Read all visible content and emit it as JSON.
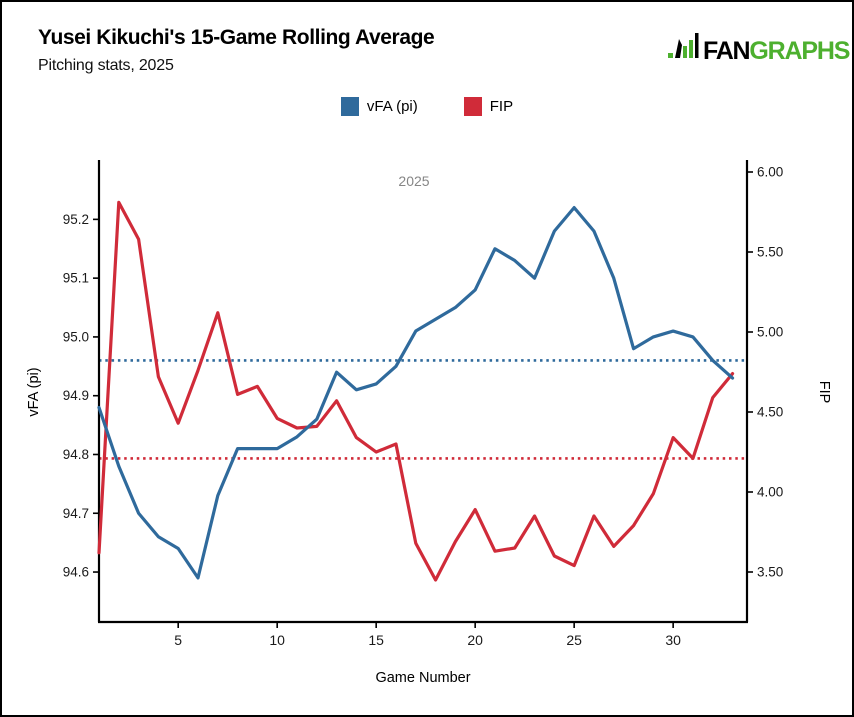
{
  "header": {
    "title": "Yusei Kikuchi's 15-Game Rolling Average",
    "subtitle": "Pitching stats, 2025",
    "logo": {
      "fan": "FAN",
      "graphs": "GRAPHS",
      "green": "#4db02f"
    }
  },
  "legend": [
    {
      "label": "vFA (pi)",
      "color": "#2f6a9c"
    },
    {
      "label": "FIP",
      "color": "#d02b39"
    }
  ],
  "chart_data": {
    "type": "line",
    "title": "Yusei Kikuchi's 15-Game Rolling Average",
    "subtitle": "Pitching stats, 2025",
    "period_label": "2025",
    "xlabel": "Game Number",
    "grid": false,
    "legend_position": "top",
    "x_range": [
      1,
      33.73
    ],
    "xticks": [
      5,
      10,
      15,
      20,
      25,
      30
    ],
    "x": [
      1,
      2,
      3,
      4,
      5,
      6,
      7,
      8,
      9,
      10,
      11,
      12,
      13,
      14,
      15,
      16,
      17,
      18,
      19,
      20,
      21,
      22,
      23,
      24,
      25,
      26,
      27,
      28,
      29,
      30,
      31,
      32,
      33
    ],
    "left_axis": {
      "label": "vFA (pi)",
      "ticks": [
        "94.6",
        "94.7",
        "94.8",
        "94.9",
        "95.0",
        "95.1",
        "95.2"
      ],
      "range": [
        94.515,
        95.301
      ]
    },
    "right_axis": {
      "label": "FIP",
      "ticks": [
        "3.50",
        "4.00",
        "4.50",
        "5.00",
        "5.50",
        "6.00"
      ],
      "range": [
        3.1875,
        6.075
      ]
    },
    "series": [
      {
        "name": "vFA (pi)",
        "axis": "left",
        "color": "#2f6a9c",
        "mean_line": 94.96,
        "values": [
          94.88,
          94.78,
          94.7,
          94.66,
          94.64,
          94.59,
          94.73,
          94.81,
          94.81,
          94.81,
          94.83,
          94.86,
          94.94,
          94.91,
          94.92,
          94.95,
          95.01,
          95.03,
          95.05,
          95.08,
          95.15,
          95.13,
          95.1,
          95.18,
          95.22,
          95.18,
          95.1,
          94.98,
          95.0,
          95.01,
          95.0,
          94.96,
          94.93
        ]
      },
      {
        "name": "FIP",
        "axis": "right",
        "color": "#d02b39",
        "mean_line": 4.21,
        "values": [
          3.62,
          5.81,
          5.58,
          4.72,
          4.43,
          4.76,
          5.12,
          4.61,
          4.66,
          4.46,
          4.4,
          4.41,
          4.57,
          4.34,
          4.25,
          4.3,
          3.68,
          3.45,
          3.69,
          3.89,
          3.63,
          3.65,
          3.85,
          3.6,
          3.54,
          3.85,
          3.66,
          3.79,
          3.99,
          4.34,
          4.21,
          4.59,
          4.74
        ]
      }
    ]
  }
}
